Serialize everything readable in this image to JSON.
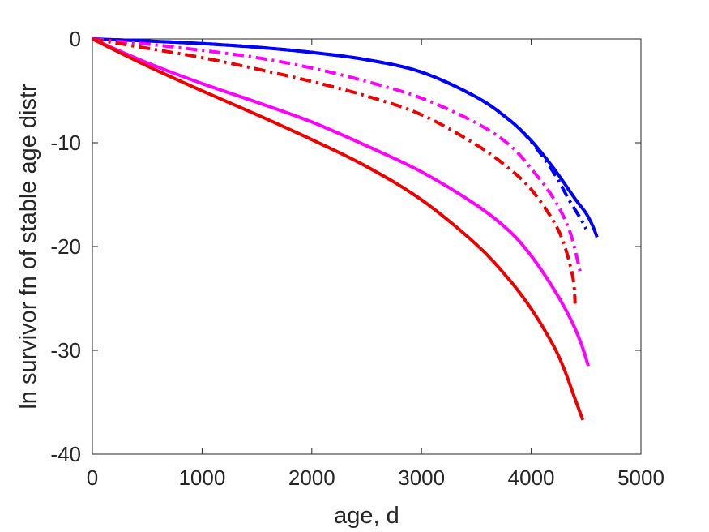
{
  "chart_data": {
    "type": "line",
    "title": "",
    "xlabel": "age, d",
    "ylabel": "ln survivor fn of stable age distr",
    "xlim": [
      0,
      5000
    ],
    "ylim": [
      -40,
      0
    ],
    "xticks": [
      0,
      1000,
      2000,
      3000,
      4000,
      5000
    ],
    "yticks": [
      0,
      -10,
      -20,
      -30,
      -40
    ],
    "xtick_labels": [
      "0",
      "1000",
      "2000",
      "3000",
      "4000",
      "5000"
    ],
    "ytick_labels": [
      "0",
      "-10",
      "-20",
      "-30",
      "-40"
    ],
    "grid": false,
    "legend": null,
    "series": [
      {
        "color": "#0000ff",
        "style": "solid",
        "x": [
          0,
          500,
          1000,
          1500,
          2000,
          2500,
          3000,
          3500,
          3800,
          4000,
          4200,
          4400,
          4500,
          4560,
          4600
        ],
        "y": [
          0,
          -0.2,
          -0.45,
          -0.8,
          -1.3,
          -2.0,
          -3.2,
          -5.6,
          -7.8,
          -9.8,
          -12.4,
          -15.4,
          -16.8,
          -18.0,
          -19.1
        ]
      },
      {
        "color": "#0000ff",
        "style": "dashdot",
        "x": [
          0,
          500,
          1000,
          1500,
          2000,
          2500,
          3000,
          3500,
          3800,
          4000,
          4200,
          4350,
          4450,
          4500
        ],
        "y": [
          0,
          -0.2,
          -0.45,
          -0.8,
          -1.3,
          -2.0,
          -3.2,
          -5.6,
          -7.8,
          -9.9,
          -12.8,
          -15.6,
          -17.3,
          -18.3
        ]
      },
      {
        "color": "#ff00ff",
        "style": "dashdot",
        "x": [
          0,
          500,
          1000,
          1500,
          2000,
          2500,
          3000,
          3500,
          3800,
          4000,
          4200,
          4350,
          4450
        ],
        "y": [
          0,
          -0.5,
          -1.1,
          -1.8,
          -2.8,
          -4.1,
          -5.7,
          -8.1,
          -10.2,
          -12.5,
          -15.3,
          -18.5,
          -22.6
        ]
      },
      {
        "color": "#ee0000",
        "style": "dashdot",
        "x": [
          0,
          500,
          1000,
          1500,
          2000,
          2500,
          3000,
          3500,
          3800,
          4000,
          4200,
          4300,
          4380,
          4400
        ],
        "y": [
          0,
          -0.9,
          -1.8,
          -2.9,
          -4.1,
          -5.5,
          -7.3,
          -10.2,
          -12.5,
          -14.5,
          -17.5,
          -19.8,
          -23.0,
          -25.5
        ]
      },
      {
        "color": "#ff00ff",
        "style": "solid",
        "x": [
          0,
          500,
          1000,
          1500,
          2000,
          2500,
          3000,
          3500,
          3800,
          4000,
          4200,
          4350,
          4450,
          4520
        ],
        "y": [
          0,
          -2.3,
          -4.3,
          -6.1,
          -8.0,
          -10.3,
          -12.8,
          -16.0,
          -18.5,
          -20.9,
          -24.0,
          -26.8,
          -29.2,
          -31.5
        ]
      },
      {
        "color": "#ee0000",
        "style": "solid",
        "x": [
          0,
          500,
          1000,
          1500,
          2000,
          2500,
          3000,
          3500,
          3800,
          4000,
          4200,
          4300,
          4400,
          4470
        ],
        "y": [
          0,
          -2.6,
          -5.0,
          -7.3,
          -9.7,
          -12.3,
          -15.5,
          -19.8,
          -23.2,
          -26.0,
          -29.5,
          -31.8,
          -34.7,
          -36.7
        ]
      }
    ]
  }
}
